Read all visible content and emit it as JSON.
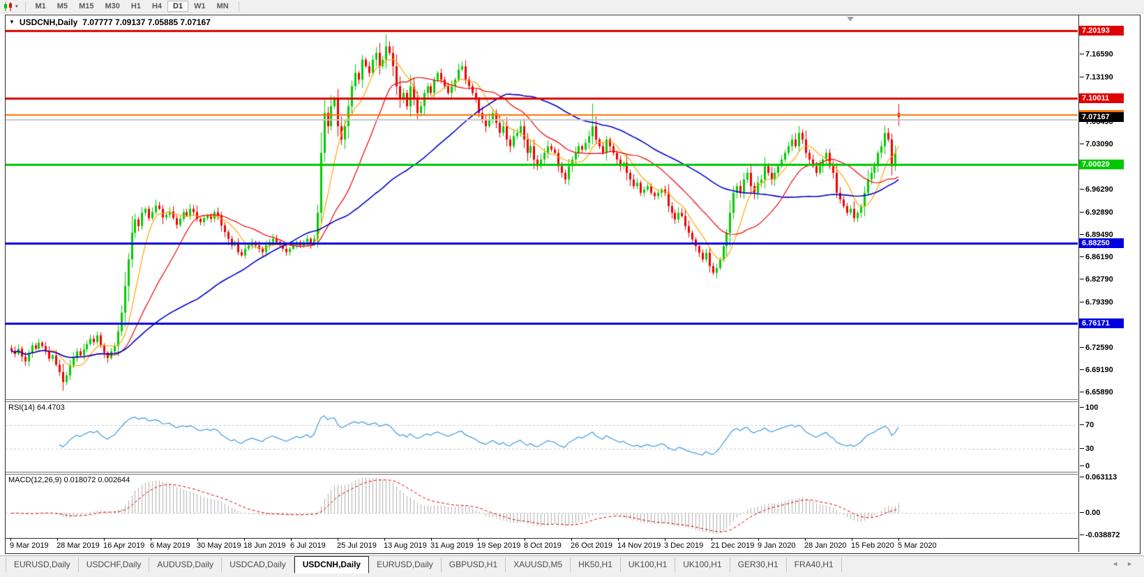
{
  "toolbar": {
    "timeframes": [
      "M1",
      "M5",
      "M15",
      "M30",
      "H1",
      "H4",
      "D1",
      "W1",
      "MN"
    ],
    "active": "D1"
  },
  "chart": {
    "title_symbol": "USDCNH,Daily",
    "title_ohlc": "7.07777 7.09137 7.05885 7.07167",
    "current_price": "7.07167",
    "price_axis": {
      "ticks": [
        "7.16590",
        "7.13190",
        "7.06490",
        "7.03090",
        "6.96290",
        "6.92890",
        "6.89490",
        "6.86190",
        "6.82790",
        "6.79390",
        "6.72590",
        "6.69190",
        "6.65890"
      ]
    }
  },
  "chart_data": {
    "type": "candlestick",
    "symbol": "USDCNH",
    "timeframe": "Daily",
    "title": "USDCNH,Daily 7.07777 7.09137 7.05885 7.07167",
    "ylim": [
      6.648,
      7.2245
    ],
    "up_color": "#00CC00",
    "down_color": "#F00000",
    "x_labels": [
      "9 Mar 2019",
      "28 Mar 2019",
      "16 Apr 2019",
      "6 May 2019",
      "30 May 2019",
      "18 Jun 2019",
      "6 Jul 2019",
      "25 Jul 2019",
      "13 Aug 2019",
      "31 Aug 2019",
      "19 Sep 2019",
      "8 Oct 2019",
      "26 Oct 2019",
      "14 Nov 2019",
      "3 Dec 2019",
      "21 Dec 2019",
      "9 Jan 2020",
      "28 Jan 2020",
      "15 Feb 2020",
      "5 Mar 2020"
    ],
    "closes": [
      6.721,
      6.716,
      6.724,
      6.712,
      6.705,
      6.718,
      6.729,
      6.724,
      6.733,
      6.728,
      6.72,
      6.709,
      6.714,
      6.7,
      6.689,
      6.674,
      6.684,
      6.699,
      6.71,
      6.72,
      6.714,
      6.723,
      6.731,
      6.739,
      6.734,
      6.744,
      6.729,
      6.718,
      6.71,
      6.72,
      6.728,
      6.75,
      6.778,
      6.818,
      6.858,
      6.898,
      6.918,
      6.908,
      6.928,
      6.934,
      6.92,
      6.929,
      6.939,
      6.934,
      6.921,
      6.925,
      6.93,
      6.92,
      6.91,
      6.919,
      6.929,
      6.924,
      6.934,
      6.929,
      6.919,
      6.914,
      6.92,
      6.924,
      6.919,
      6.929,
      6.924,
      6.909,
      6.899,
      6.889,
      6.879,
      6.884,
      6.869,
      6.864,
      6.874,
      6.879,
      6.884,
      6.879,
      6.874,
      6.869,
      6.879,
      6.884,
      6.889,
      6.884,
      6.879,
      6.874,
      6.869,
      6.874,
      6.879,
      6.884,
      6.879,
      6.884,
      6.889,
      6.881,
      6.889,
      6.928,
      7.018,
      7.078,
      7.058,
      7.088,
      7.098,
      7.058,
      7.038,
      7.058,
      7.088,
      7.118,
      7.138,
      7.128,
      7.158,
      7.148,
      7.138,
      7.158,
      7.168,
      7.148,
      7.158,
      7.178,
      7.168,
      7.148,
      7.118,
      7.098,
      7.108,
      7.088,
      7.118,
      7.098,
      7.078,
      7.088,
      7.108,
      7.118,
      7.108,
      7.128,
      7.138,
      7.128,
      7.118,
      7.108,
      7.118,
      7.128,
      7.143,
      7.148,
      7.128,
      7.118,
      7.108,
      7.098,
      7.078,
      7.068,
      7.058,
      7.068,
      7.078,
      7.063,
      7.048,
      7.058,
      7.038,
      7.028,
      7.043,
      7.048,
      7.058,
      7.038,
      7.018,
      7.028,
      7.008,
      6.998,
      7.008,
      7.018,
      7.028,
      7.023,
      7.018,
      6.998,
      6.988,
      6.978,
      6.998,
      7.008,
      7.018,
      7.028,
      7.023,
      7.033,
      7.043,
      7.058,
      7.038,
      7.028,
      7.018,
      7.038,
      7.028,
      7.018,
      7.008,
      6.998,
      7.003,
      6.988,
      6.978,
      6.968,
      6.973,
      6.958,
      6.963,
      6.968,
      6.958,
      6.953,
      6.958,
      6.963,
      6.958,
      6.938,
      6.928,
      6.918,
      6.928,
      6.923,
      6.908,
      6.898,
      6.888,
      6.878,
      6.868,
      6.858,
      6.868,
      6.848,
      6.838,
      6.845,
      6.858,
      6.878,
      6.898,
      6.928,
      6.958,
      6.968,
      6.958,
      6.978,
      6.988,
      6.968,
      6.958,
      6.973,
      6.978,
      6.998,
      6.988,
      6.978,
      6.988,
      6.998,
      7.008,
      7.018,
      7.028,
      7.038,
      7.028,
      7.048,
      7.038,
      7.018,
      7.008,
      6.998,
      6.988,
      6.998,
      7.008,
      7.018,
      6.998,
      6.988,
      6.958,
      6.948,
      6.938,
      6.928,
      6.934,
      6.92,
      6.928,
      6.938,
      6.958,
      6.978,
      6.988,
      6.998,
      7.018,
      7.028,
      7.048,
      7.038,
      6.998,
      7.018,
      7.078
    ],
    "last_candle": {
      "open": 7.07777,
      "high": 7.09137,
      "low": 7.05885,
      "close": 7.07167
    },
    "wick_overrides": {
      "15": {
        "low": 6.661
      },
      "109": {
        "high": 7.196
      },
      "169": {
        "high": 7.092
      }
    },
    "moving_averages": [
      {
        "name": "fast-ma",
        "period": 8,
        "color": "#FFA500"
      },
      {
        "name": "medium-ma",
        "period": 21,
        "color": "#F00000"
      },
      {
        "name": "slow-ma",
        "period": 55,
        "color": "#0000C8"
      }
    ],
    "horizontal_levels": [
      {
        "value": 7.20193,
        "label": "7.20193",
        "color": "#E00000",
        "width": 3
      },
      {
        "value": 7.10011,
        "label": "7.10011",
        "color": "#E00000",
        "width": 3
      },
      {
        "value": 7.0753,
        "label": "",
        "color": "#FF7000",
        "width": 2
      },
      {
        "value": 7.068,
        "label": "",
        "color": "#C8C8C8",
        "width": 2
      },
      {
        "value": 7.00029,
        "label": "7.00029",
        "color": "#00C800",
        "width": 3
      },
      {
        "value": 6.8825,
        "label": "6.88250",
        "color": "#0000E0",
        "width": 3
      },
      {
        "value": 6.76171,
        "label": "6.76171",
        "color": "#0000E0",
        "width": 3
      }
    ]
  },
  "rsi": {
    "label": "RSI(14) 64.4703",
    "period": 14,
    "last_value": "64.4703",
    "levels": [
      70,
      30
    ],
    "ticks": [
      "100",
      "70",
      "30",
      "0"
    ],
    "color": "#3C9BE0",
    "range": [
      0,
      100
    ]
  },
  "macd": {
    "label": "MACD(12,26,9) 0.018072 0.002644",
    "params": "12,26,9",
    "macd_value": "0.018072",
    "signal_value": "0.002644",
    "ticks": [
      "0.063113",
      "0.00",
      "-0.038872"
    ],
    "range": [
      -0.038872,
      0.063113
    ],
    "histogram_color": "#B0B0B0",
    "signal_color": "#E00000"
  },
  "date_axis": {
    "labels": [
      "9 Mar 2019",
      "28 Mar 2019",
      "16 Apr 2019",
      "6 May 2019",
      "30 May 2019",
      "18 Jun 2019",
      "6 Jul 2019",
      "25 Jul 2019",
      "13 Aug 2019",
      "31 Aug 2019",
      "19 Sep 2019",
      "8 Oct 2019",
      "26 Oct 2019",
      "14 Nov 2019",
      "3 Dec 2019",
      "21 Dec 2019",
      "9 Jan 2020",
      "28 Jan 2020",
      "15 Feb 2020",
      "5 Mar 2020"
    ]
  },
  "tabs": {
    "items": [
      "EURUSD,Daily",
      "USDCHF,Daily",
      "AUDUSD,Daily",
      "USDCAD,Daily",
      "USDCNH,Daily",
      "EURUSD,Daily",
      "GBPUSD,H1",
      "XAUUSD,M5",
      "HK50,H1",
      "UK100,H1",
      "UK100,H1",
      "GER30,H1",
      "FRA40,H1"
    ],
    "active_index": 4,
    "nav_left": "◄",
    "nav_right": "►"
  }
}
